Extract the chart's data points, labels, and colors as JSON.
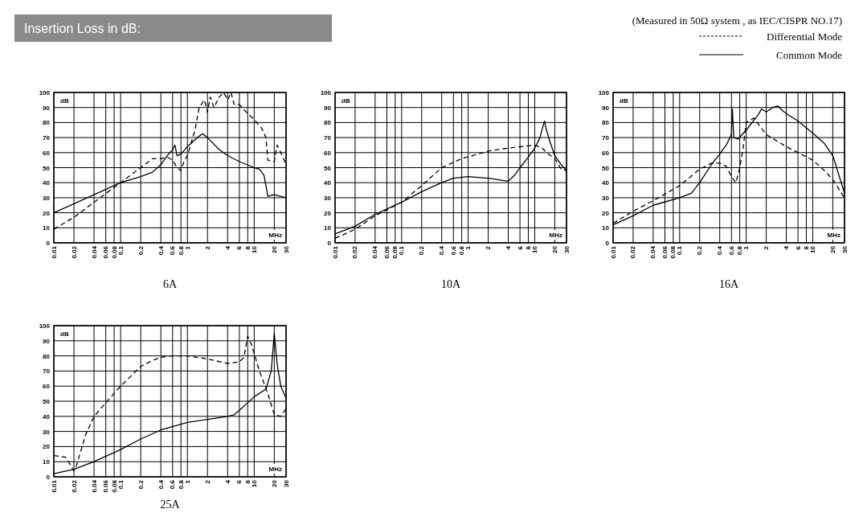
{
  "chart_data": [
    {
      "type": "other",
      "title": "Insertion Loss in dB:",
      "annotations": [
        "(Measured in 50Ω system , as IEC/CISPR NO.17)"
      ]
    },
    {
      "type": "line",
      "title": "6A",
      "xlabel": "MHz",
      "ylabel": "dB",
      "log": "x",
      "grid": true,
      "legend": "top right",
      "xlim": [
        0.01,
        30
      ],
      "ylim": [
        0,
        100
      ],
      "xticks": [
        0.01,
        0.02,
        0.04,
        0.06,
        0.08,
        0.1,
        0.2,
        0.4,
        0.6,
        0.8,
        1,
        2,
        4,
        6,
        8,
        10,
        20,
        30
      ],
      "yticks": [
        0,
        10,
        20,
        30,
        40,
        50,
        60,
        70,
        80,
        90,
        100
      ],
      "series": [
        {
          "name": "Differential Mode",
          "color": "#000000",
          "line_style": "dashed",
          "x": [
            0.01,
            0.02,
            0.04,
            0.1,
            0.2,
            0.3,
            0.4,
            0.5,
            0.6,
            0.7,
            0.8,
            0.9,
            1,
            1.3,
            1.5,
            1.8,
            2,
            2.2,
            2.5,
            3,
            3.5,
            4,
            4.5,
            5,
            6,
            8,
            10,
            13,
            15,
            16,
            20,
            22,
            25,
            30
          ],
          "values": [
            9,
            17,
            27,
            40,
            50,
            56,
            56,
            57,
            55,
            50,
            48,
            55,
            58,
            75,
            90,
            95,
            87,
            97,
            90,
            97,
            100,
            95,
            100,
            92,
            92,
            86,
            82,
            76,
            70,
            55,
            54,
            65,
            60,
            52
          ]
        },
        {
          "name": "Common Mode",
          "color": "#000000",
          "line_style": "solid",
          "x": [
            0.01,
            0.02,
            0.04,
            0.1,
            0.2,
            0.3,
            0.4,
            0.5,
            0.6,
            0.65,
            0.7,
            0.8,
            1,
            1.5,
            1.7,
            2,
            3,
            4,
            6,
            10,
            12,
            14,
            15,
            16,
            20,
            30
          ],
          "values": [
            20,
            26,
            32,
            40,
            44,
            47,
            52,
            58,
            62,
            65,
            58,
            59,
            64,
            71,
            72.5,
            70,
            62,
            58,
            54,
            50,
            49,
            45,
            38,
            31,
            32,
            30
          ]
        }
      ]
    },
    {
      "type": "line",
      "title": "10A",
      "xlabel": "MHz",
      "ylabel": "dB",
      "log": "x",
      "grid": true,
      "xlim": [
        0.01,
        30
      ],
      "ylim": [
        0,
        100
      ],
      "xticks": [
        0.01,
        0.02,
        0.04,
        0.06,
        0.08,
        0.1,
        0.2,
        0.4,
        0.6,
        0.8,
        1,
        2,
        4,
        6,
        8,
        10,
        20,
        30
      ],
      "yticks": [
        0,
        10,
        20,
        30,
        40,
        50,
        60,
        70,
        80,
        90,
        100
      ],
      "series": [
        {
          "color": "#000000",
          "line_style": "dashed",
          "x": [
            0.01,
            0.02,
            0.04,
            0.1,
            0.2,
            0.4,
            0.8,
            2,
            4,
            10,
            13,
            15,
            20,
            25,
            30
          ],
          "values": [
            3,
            9,
            18,
            27,
            38,
            50,
            56,
            61,
            63,
            65,
            63,
            60,
            56,
            49,
            48
          ]
        },
        {
          "color": "#000000",
          "line_style": "solid",
          "x": [
            0.01,
            0.02,
            0.04,
            0.1,
            0.2,
            0.4,
            0.6,
            1,
            2,
            4,
            5,
            6,
            8,
            10,
            12,
            13,
            14,
            15,
            17,
            20,
            25,
            30
          ],
          "values": [
            6,
            11,
            19,
            27,
            34,
            40,
            43,
            44,
            43,
            41,
            45,
            50,
            57,
            63,
            70,
            76,
            81,
            75,
            67,
            58,
            52,
            48
          ]
        }
      ]
    },
    {
      "type": "line",
      "title": "16A",
      "xlabel": "MHz",
      "ylabel": "dB",
      "log": "x",
      "grid": true,
      "xlim": [
        0.01,
        30
      ],
      "ylim": [
        0,
        100
      ],
      "xticks": [
        0.01,
        0.02,
        0.04,
        0.06,
        0.08,
        0.1,
        0.2,
        0.4,
        0.6,
        0.8,
        1,
        2,
        4,
        6,
        8,
        10,
        20,
        30
      ],
      "yticks": [
        0,
        10,
        20,
        30,
        40,
        50,
        60,
        70,
        80,
        90,
        100
      ],
      "series": [
        {
          "color": "#000000",
          "line_style": "dashed",
          "x": [
            0.01,
            0.02,
            0.04,
            0.1,
            0.2,
            0.3,
            0.4,
            0.5,
            0.6,
            0.7,
            0.8,
            0.9,
            1,
            1.3,
            2,
            4,
            10,
            15,
            20,
            30
          ],
          "values": [
            13,
            21,
            28,
            38,
            49,
            53,
            53,
            51,
            44,
            40,
            50,
            63,
            80,
            83,
            72,
            64,
            55,
            48,
            42,
            30
          ]
        },
        {
          "color": "#000000",
          "line_style": "solid",
          "x": [
            0.01,
            0.02,
            0.04,
            0.1,
            0.15,
            0.2,
            0.3,
            0.4,
            0.5,
            0.6,
            0.62,
            0.65,
            0.75,
            1,
            1.5,
            1.7,
            2,
            2.5,
            3,
            3.5,
            4,
            6,
            10,
            15,
            20,
            30
          ],
          "values": [
            12,
            18,
            25,
            30,
            33,
            40,
            52,
            59,
            65,
            72,
            89,
            70,
            69,
            75,
            85,
            89,
            87,
            90,
            91,
            88,
            86,
            81,
            73,
            66,
            58,
            33
          ]
        }
      ]
    },
    {
      "type": "line",
      "title": "25A",
      "xlabel": "MHz",
      "ylabel": "dB",
      "log": "x",
      "grid": true,
      "xlim": [
        0.01,
        30
      ],
      "ylim": [
        0,
        100
      ],
      "xticks": [
        0.01,
        0.02,
        0.04,
        0.06,
        0.08,
        0.1,
        0.2,
        0.4,
        0.6,
        0.8,
        1,
        2,
        4,
        6,
        8,
        10,
        20,
        30
      ],
      "yticks": [
        0,
        10,
        20,
        30,
        40,
        50,
        60,
        70,
        80,
        90,
        100
      ],
      "series": [
        {
          "color": "#000000",
          "line_style": "dashed",
          "x": [
            0.01,
            0.015,
            0.02,
            0.022,
            0.03,
            0.04,
            0.06,
            0.1,
            0.2,
            0.3,
            0.4,
            0.6,
            1,
            2,
            4,
            6,
            7,
            8,
            9,
            12,
            16,
            20,
            25,
            30
          ],
          "values": [
            14,
            13,
            4,
            8,
            28,
            40,
            49,
            60,
            73,
            77,
            79,
            80,
            80,
            78,
            75,
            76,
            79,
            93,
            88,
            70,
            55,
            41,
            40,
            45
          ]
        },
        {
          "color": "#000000",
          "line_style": "solid",
          "x": [
            0.01,
            0.02,
            0.04,
            0.1,
            0.2,
            0.4,
            1,
            2,
            4,
            5,
            6,
            8,
            10,
            15,
            18,
            20,
            22,
            25,
            30
          ],
          "values": [
            2,
            5,
            10,
            18,
            25,
            31,
            36,
            38,
            40,
            41,
            44,
            49,
            53,
            58,
            70,
            95,
            75,
            60,
            52
          ]
        }
      ]
    }
  ]
}
